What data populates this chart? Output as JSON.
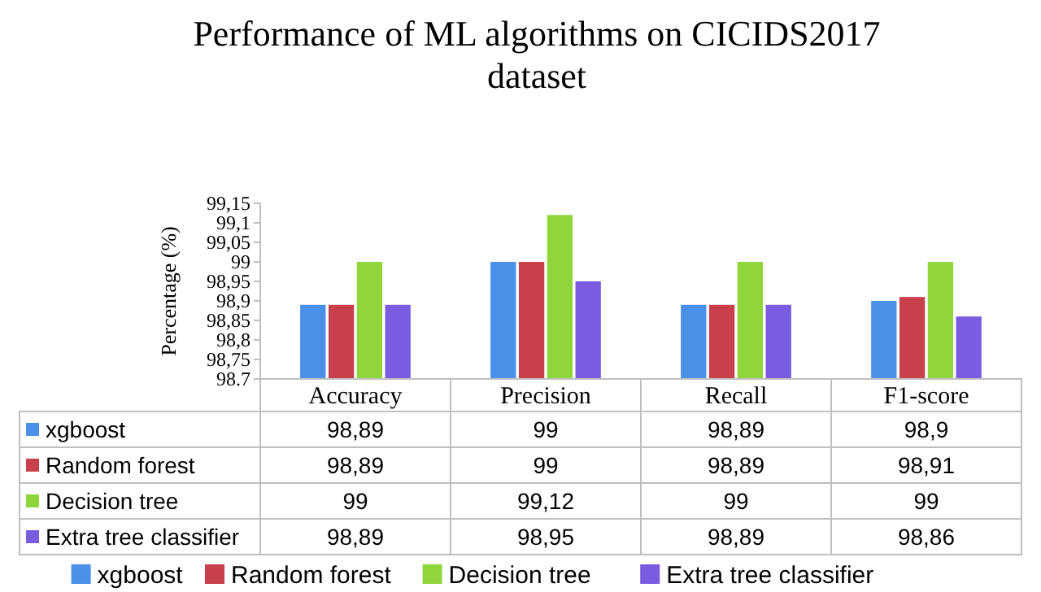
{
  "chart_data": {
    "type": "bar",
    "title": "Performance of ML algorithms on CICIDS2017 dataset",
    "ylabel": "Percentage (%)",
    "categories": [
      "Accuracy",
      "Precision",
      "Recall",
      "F1-score"
    ],
    "series": [
      {
        "name": "xgboost",
        "color": "#4a90e8",
        "values": [
          98.89,
          99,
          98.89,
          98.9
        ],
        "value_labels": [
          "98,89",
          "99",
          "98,89",
          "98,9"
        ]
      },
      {
        "name": "Random forest",
        "color": "#c8404c",
        "values": [
          98.89,
          99,
          98.89,
          98.91
        ],
        "value_labels": [
          "98,89",
          "99",
          "98,89",
          "98,91"
        ]
      },
      {
        "name": "Decision tree",
        "color": "#8ed63c",
        "values": [
          99,
          99.12,
          99,
          99
        ],
        "value_labels": [
          "99",
          "99,12",
          "99",
          "99"
        ]
      },
      {
        "name": "Extra tree classifier",
        "color": "#7a5ce0",
        "values": [
          98.89,
          98.95,
          98.89,
          98.86
        ],
        "value_labels": [
          "98,89",
          "98,95",
          "98,89",
          "98,86"
        ]
      }
    ],
    "ylim": [
      98.7,
      99.15
    ],
    "yticks": [
      98.7,
      {
        "value": 98.75,
        "label": "98,75"
      },
      {
        "value": 98.8,
        "label": "98,8"
      },
      {
        "value": 98.85,
        "label": "98,85"
      },
      {
        "value": 98.9,
        "label": "98,9"
      },
      {
        "value": 98.95,
        "label": "98,95"
      },
      99,
      {
        "value": 99.05,
        "label": "99,05"
      },
      {
        "value": 99.1,
        "label": "99,1"
      },
      {
        "value": 99.15,
        "label": "99,15"
      }
    ],
    "legend": "bottom"
  }
}
